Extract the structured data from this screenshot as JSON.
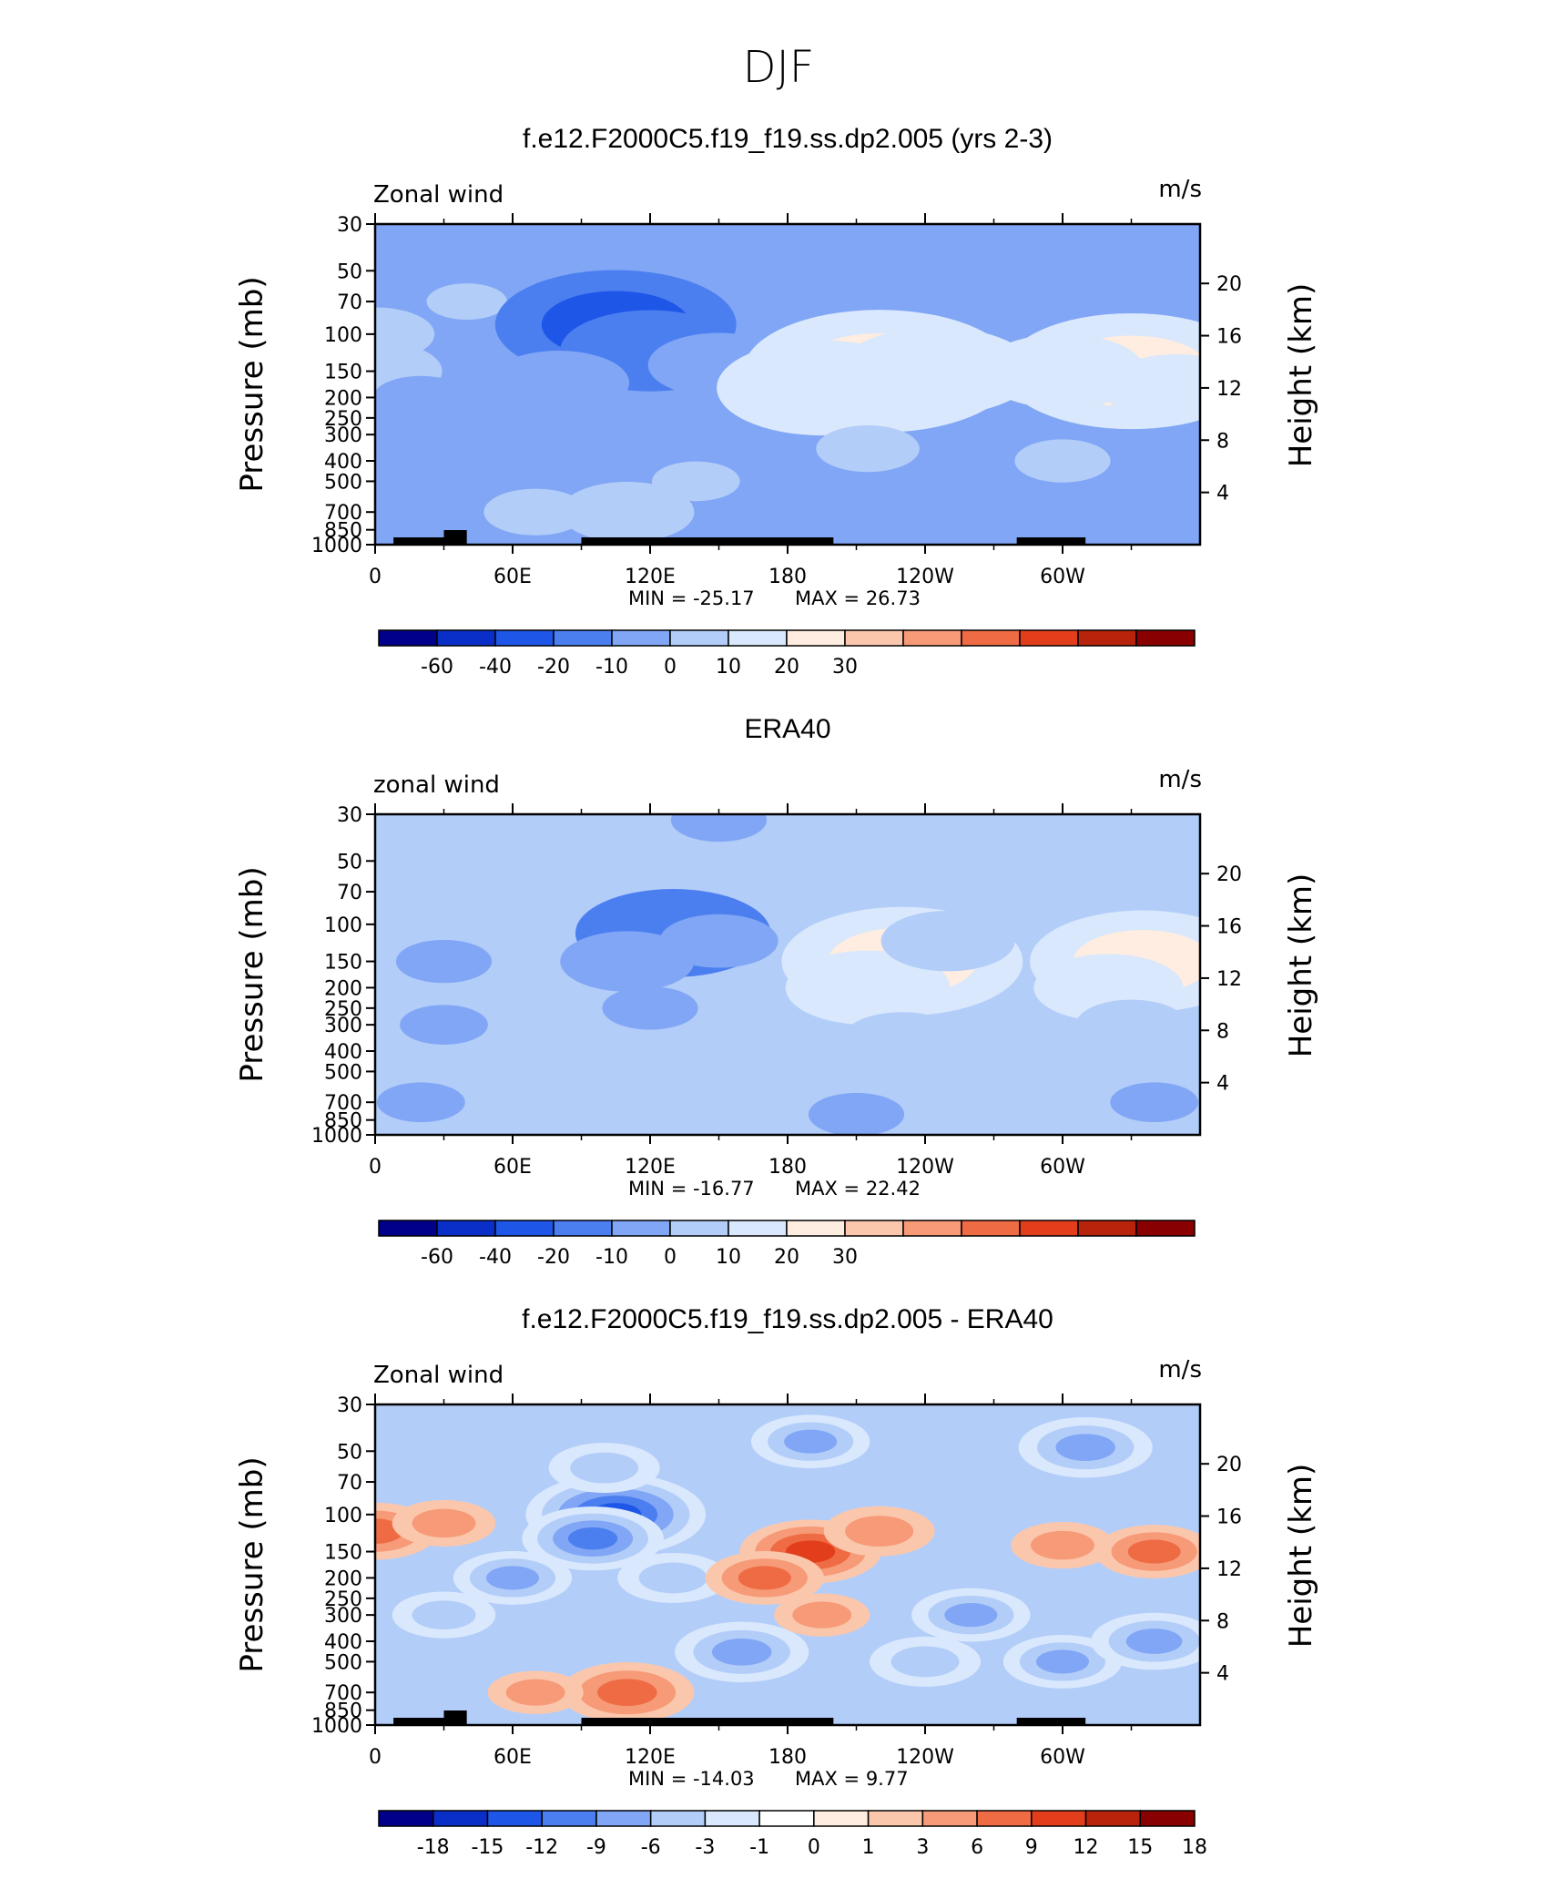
{
  "figure_title": "DJF",
  "chart_data": [
    {
      "type": "heatmap",
      "title": "f.e12.F2000C5.f19_f19.ss.dp2.005 (yrs 2-3)",
      "left_label": "Zonal wind",
      "units": "m/s",
      "ylabel": "Pressure (mb)",
      "y2label": "Height (km)",
      "y_ticks": [
        "30",
        "50",
        "70",
        "100",
        "150",
        "200",
        "250",
        "300",
        "400",
        "500",
        "700",
        "850",
        "1000"
      ],
      "y2_ticks": [
        "20",
        "16",
        "12",
        "8",
        "4"
      ],
      "x_ticks": [
        "0",
        "60E",
        "120E",
        "180",
        "120W",
        "60W"
      ],
      "xlim": [
        0,
        360
      ],
      "ylim": [
        1000,
        30
      ],
      "stats": {
        "min_label": "MIN = -25.17",
        "max_label": "MAX =  26.73",
        "min": -25.17,
        "max": 26.73
      },
      "colorbar_labels": [
        "-60",
        "-40",
        "-20",
        "-10",
        "0",
        "10",
        "20",
        "30"
      ],
      "colors": [
        "#00008b",
        "#0a2fc9",
        "#1e56e8",
        "#4b7ff0",
        "#80a6f5",
        "#b3cdf9",
        "#d9e8fc",
        "#feede0",
        "#fbc7ac",
        "#f69a78",
        "#ef6b44",
        "#e23e1b",
        "#b7230b",
        "#890000"
      ],
      "terrain": true,
      "features": [
        {
          "lon": 0,
          "p": 100,
          "v": 6
        },
        {
          "lon": 0,
          "p": 150,
          "v": 8
        },
        {
          "lon": 40,
          "p": 70,
          "v": 1
        },
        {
          "lon": 20,
          "p": 200,
          "v": -3
        },
        {
          "lon": 105,
          "p": 90,
          "v": -22
        },
        {
          "lon": 120,
          "p": 120,
          "v": -14
        },
        {
          "lon": 80,
          "p": 170,
          "v": -9
        },
        {
          "lon": 150,
          "p": 140,
          "v": -9
        },
        {
          "lon": 160,
          "p": 300,
          "v": -3
        },
        {
          "lon": 220,
          "p": 150,
          "v": 26
        },
        {
          "lon": 195,
          "p": 180,
          "v": 18
        },
        {
          "lon": 245,
          "p": 150,
          "v": 16
        },
        {
          "lon": 215,
          "p": 350,
          "v": 4
        },
        {
          "lon": 330,
          "p": 150,
          "v": 24
        },
        {
          "lon": 300,
          "p": 150,
          "v": 12
        },
        {
          "lon": 350,
          "p": 180,
          "v": 10
        },
        {
          "lon": 300,
          "p": 400,
          "v": 3
        },
        {
          "lon": 110,
          "p": 700,
          "v": 8
        },
        {
          "lon": 70,
          "p": 700,
          "v": 4
        },
        {
          "lon": 140,
          "p": 500,
          "v": 2
        },
        {
          "lon": 210,
          "p": 900,
          "v": -8
        },
        {
          "lon": 250,
          "p": 800,
          "v": -3
        },
        {
          "lon": 330,
          "p": 850,
          "v": -2
        },
        {
          "lon": 180,
          "p": 40,
          "v": -3
        }
      ]
    },
    {
      "type": "heatmap",
      "title": "ERA40",
      "left_label": "zonal wind",
      "units": "m/s",
      "ylabel": "Pressure (mb)",
      "y2label": "Height (km)",
      "y_ticks": [
        "30",
        "50",
        "70",
        "100",
        "150",
        "200",
        "250",
        "300",
        "400",
        "500",
        "700",
        "850",
        "1000"
      ],
      "y2_ticks": [
        "20",
        "16",
        "12",
        "8",
        "4"
      ],
      "x_ticks": [
        "0",
        "60E",
        "120E",
        "180",
        "120W",
        "60W"
      ],
      "xlim": [
        0,
        360
      ],
      "ylim": [
        1000,
        30
      ],
      "stats": {
        "min_label": "MIN = -16.77",
        "max_label": "MAX =  22.42",
        "min": -16.77,
        "max": 22.42
      },
      "colorbar_labels": [
        "-60",
        "-40",
        "-20",
        "-10",
        "0",
        "10",
        "20",
        "30"
      ],
      "colors": [
        "#00008b",
        "#0a2fc9",
        "#1e56e8",
        "#4b7ff0",
        "#80a6f5",
        "#b3cdf9",
        "#d9e8fc",
        "#feede0",
        "#fbc7ac",
        "#f69a78",
        "#ef6b44",
        "#e23e1b",
        "#b7230b",
        "#890000"
      ],
      "terrain": false,
      "features": [
        {
          "lon": 0,
          "p": 150,
          "v": 3
        },
        {
          "lon": 30,
          "p": 150,
          "v": -3
        },
        {
          "lon": 30,
          "p": 300,
          "v": -2
        },
        {
          "lon": 130,
          "p": 110,
          "v": -16
        },
        {
          "lon": 110,
          "p": 150,
          "v": -8
        },
        {
          "lon": 150,
          "p": 120,
          "v": -6
        },
        {
          "lon": 120,
          "p": 250,
          "v": -3
        },
        {
          "lon": 230,
          "p": 150,
          "v": 22
        },
        {
          "lon": 215,
          "p": 200,
          "v": 12
        },
        {
          "lon": 250,
          "p": 120,
          "v": 8
        },
        {
          "lon": 230,
          "p": 350,
          "v": 6
        },
        {
          "lon": 335,
          "p": 150,
          "v": 20
        },
        {
          "lon": 320,
          "p": 200,
          "v": 10
        },
        {
          "lon": 330,
          "p": 300,
          "v": 5
        },
        {
          "lon": 90,
          "p": 700,
          "v": 4
        },
        {
          "lon": 120,
          "p": 700,
          "v": 5
        },
        {
          "lon": 210,
          "p": 800,
          "v": -3
        },
        {
          "lon": 340,
          "p": 700,
          "v": -2
        },
        {
          "lon": 150,
          "p": 32,
          "v": -3
        },
        {
          "lon": 20,
          "p": 700,
          "v": -2
        }
      ]
    },
    {
      "type": "heatmap",
      "title": "f.e12.F2000C5.f19_f19.ss.dp2.005 - ERA40",
      "left_label": "Zonal wind",
      "units": "m/s",
      "ylabel": "Pressure (mb)",
      "y2label": "Height (km)",
      "y_ticks": [
        "30",
        "50",
        "70",
        "100",
        "150",
        "200",
        "250",
        "300",
        "400",
        "500",
        "700",
        "850",
        "1000"
      ],
      "y2_ticks": [
        "20",
        "16",
        "12",
        "8",
        "4"
      ],
      "x_ticks": [
        "0",
        "60E",
        "120E",
        "180",
        "120W",
        "60W"
      ],
      "xlim": [
        0,
        360
      ],
      "ylim": [
        1000,
        30
      ],
      "stats": {
        "min_label": "MIN = -14.03",
        "max_label": "MAX =    9.77",
        "min": -14.03,
        "max": 9.77
      },
      "colorbar_labels": [
        "-18",
        "-15",
        "-12",
        "-9",
        "-6",
        "-3",
        "-1",
        "0",
        "1",
        "3",
        "6",
        "9",
        "12",
        "15",
        "18"
      ],
      "colors": [
        "#00008b",
        "#0a2fc9",
        "#1e56e8",
        "#4b7ff0",
        "#80a6f5",
        "#b3cdf9",
        "#d9e8fc",
        "#ffffff",
        "#feede0",
        "#fbc7ac",
        "#f69a78",
        "#ef6b44",
        "#e23e1b",
        "#b7230b",
        "#890000"
      ],
      "terrain": true,
      "features": [
        {
          "lon": 0,
          "p": 120,
          "v": 7
        },
        {
          "lon": 30,
          "p": 110,
          "v": 4
        },
        {
          "lon": 105,
          "p": 100,
          "v": -14
        },
        {
          "lon": 95,
          "p": 130,
          "v": -9
        },
        {
          "lon": 60,
          "p": 200,
          "v": -6
        },
        {
          "lon": 30,
          "p": 300,
          "v": -4
        },
        {
          "lon": 130,
          "p": 200,
          "v": -5
        },
        {
          "lon": 190,
          "p": 150,
          "v": 9
        },
        {
          "lon": 170,
          "p": 200,
          "v": 6
        },
        {
          "lon": 220,
          "p": 120,
          "v": 5
        },
        {
          "lon": 195,
          "p": 300,
          "v": 3
        },
        {
          "lon": 300,
          "p": 140,
          "v": 4
        },
        {
          "lon": 340,
          "p": 150,
          "v": 6
        },
        {
          "lon": 160,
          "p": 450,
          "v": -8
        },
        {
          "lon": 260,
          "p": 300,
          "v": -6
        },
        {
          "lon": 240,
          "p": 500,
          "v": -5
        },
        {
          "lon": 300,
          "p": 500,
          "v": -6
        },
        {
          "lon": 340,
          "p": 400,
          "v": -7
        },
        {
          "lon": 110,
          "p": 700,
          "v": 8
        },
        {
          "lon": 70,
          "p": 700,
          "v": 3
        },
        {
          "lon": 190,
          "p": 45,
          "v": -6
        },
        {
          "lon": 310,
          "p": 48,
          "v": -8
        },
        {
          "lon": 100,
          "p": 60,
          "v": -5
        }
      ]
    }
  ]
}
